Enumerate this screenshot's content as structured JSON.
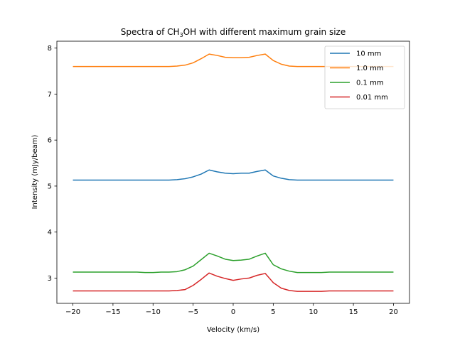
{
  "chart_data": {
    "type": "line",
    "title": "Spectra of CH3OH with different maximum grain size",
    "title_parts": {
      "pre": "Spectra of CH",
      "sub": "3",
      "post": "OH with different maximum grain size"
    },
    "xlabel": "Velocity (km/s)",
    "ylabel": "Intensity (mJy/beam)",
    "xlim": [
      -22,
      22
    ],
    "ylim": [
      2.45,
      8.15
    ],
    "xticks": [
      -20,
      -15,
      -10,
      -5,
      0,
      5,
      10,
      15,
      20
    ],
    "xtick_labels": [
      "−20",
      "−15",
      "−10",
      "−5",
      "0",
      "5",
      "10",
      "15",
      "20"
    ],
    "yticks": [
      3,
      4,
      5,
      6,
      7,
      8
    ],
    "ytick_labels": [
      "3",
      "4",
      "5",
      "6",
      "7",
      "8"
    ],
    "grid": false,
    "legend_position": "top-right",
    "x": [
      -20,
      -19,
      -18,
      -17,
      -16,
      -15,
      -14,
      -13,
      -12,
      -11,
      -10,
      -9,
      -8,
      -7,
      -6,
      -5,
      -4,
      -3,
      -2,
      -1,
      0,
      1,
      2,
      3,
      4,
      5,
      6,
      7,
      8,
      9,
      10,
      11,
      12,
      13,
      14,
      15,
      16,
      17,
      18,
      19,
      20
    ],
    "series": [
      {
        "name": "10 mm",
        "color": "#1f77b4",
        "values": [
          5.13,
          5.13,
          5.13,
          5.13,
          5.13,
          5.13,
          5.13,
          5.13,
          5.13,
          5.13,
          5.13,
          5.13,
          5.13,
          5.14,
          5.16,
          5.2,
          5.26,
          5.35,
          5.31,
          5.28,
          5.27,
          5.28,
          5.28,
          5.32,
          5.35,
          5.22,
          5.17,
          5.14,
          5.13,
          5.13,
          5.13,
          5.13,
          5.13,
          5.13,
          5.13,
          5.13,
          5.13,
          5.13,
          5.13,
          5.13,
          5.13
        ]
      },
      {
        "name": "1.0 mm",
        "color": "#ff7f0e",
        "values": [
          7.6,
          7.6,
          7.6,
          7.6,
          7.6,
          7.6,
          7.6,
          7.6,
          7.6,
          7.6,
          7.6,
          7.6,
          7.6,
          7.61,
          7.63,
          7.68,
          7.77,
          7.87,
          7.84,
          7.8,
          7.79,
          7.79,
          7.8,
          7.84,
          7.87,
          7.73,
          7.65,
          7.61,
          7.6,
          7.6,
          7.6,
          7.6,
          7.6,
          7.6,
          7.6,
          7.6,
          7.6,
          7.6,
          7.6,
          7.6,
          7.6
        ]
      },
      {
        "name": "0.1 mm",
        "color": "#2ca02c",
        "values": [
          3.13,
          3.13,
          3.13,
          3.13,
          3.13,
          3.13,
          3.13,
          3.13,
          3.13,
          3.12,
          3.12,
          3.13,
          3.13,
          3.14,
          3.18,
          3.26,
          3.4,
          3.54,
          3.48,
          3.41,
          3.38,
          3.39,
          3.41,
          3.48,
          3.54,
          3.29,
          3.2,
          3.15,
          3.12,
          3.12,
          3.12,
          3.12,
          3.13,
          3.13,
          3.13,
          3.13,
          3.13,
          3.13,
          3.13,
          3.13,
          3.13
        ]
      },
      {
        "name": "0.01 mm",
        "color": "#d62728",
        "values": [
          2.72,
          2.72,
          2.72,
          2.72,
          2.72,
          2.72,
          2.72,
          2.72,
          2.72,
          2.72,
          2.72,
          2.72,
          2.72,
          2.73,
          2.75,
          2.84,
          2.97,
          3.11,
          3.04,
          2.99,
          2.95,
          2.98,
          3.0,
          3.06,
          3.1,
          2.9,
          2.78,
          2.73,
          2.71,
          2.71,
          2.71,
          2.71,
          2.72,
          2.72,
          2.72,
          2.72,
          2.72,
          2.72,
          2.72,
          2.72,
          2.72
        ]
      }
    ]
  }
}
